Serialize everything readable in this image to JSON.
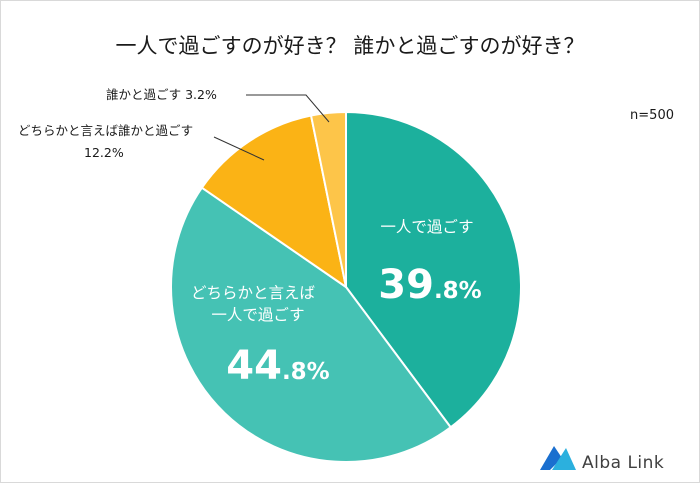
{
  "chart_data": {
    "type": "pie",
    "title": "一人で過ごすのが好き？ 誰かと過ごすのが好き？",
    "note": "n=500",
    "slices": [
      {
        "label": "一人で過ごす",
        "label_lines": [
          "一人で過ごす"
        ],
        "value": 39.8,
        "pct_whole": "39",
        "pct_frac": ".8%",
        "color": "#1cb09d"
      },
      {
        "label": "どちらかと言えば一人で過ごす",
        "label_lines": [
          "どちらかと言えば",
          "一人で過ごす"
        ],
        "value": 44.8,
        "pct_whole": "44",
        "pct_frac": ".8%",
        "color": "#45c2b4"
      },
      {
        "label": "どちらかと言えば誰かと過ごす",
        "label_lines": [
          "どちらかと言えば誰かと過ごす",
          "12.2%"
        ],
        "value": 12.2,
        "color": "#fbb315"
      },
      {
        "label": "誰かと過ごす",
        "label_lines": [
          "誰かと過ごす 3.2%"
        ],
        "value": 3.2,
        "color": "#fdc549"
      }
    ]
  },
  "brand": {
    "name": "Alba Link",
    "colors": [
      "#1a6fcf",
      "#2bb0de"
    ]
  }
}
